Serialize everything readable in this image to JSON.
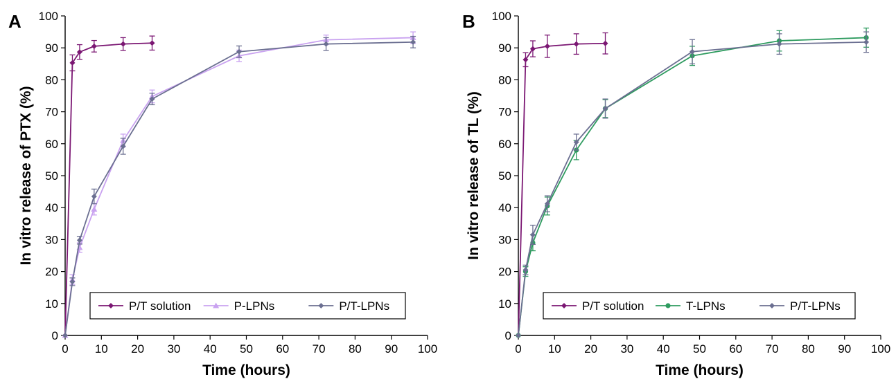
{
  "chart_data": [
    {
      "type": "line",
      "panel": "A",
      "xlabel": "Time (hours)",
      "ylabel": "In vitro release of PTX (%)",
      "xlim": [
        0,
        100
      ],
      "ylim": [
        0,
        100
      ],
      "xticks": [
        0,
        10,
        20,
        30,
        40,
        50,
        60,
        70,
        80,
        90,
        100
      ],
      "yticks": [
        0,
        10,
        20,
        30,
        40,
        50,
        60,
        70,
        80,
        90,
        100
      ],
      "grid": false,
      "legend": "bottom-center",
      "series": [
        {
          "name": "P/T solution",
          "color": "#7B1773",
          "marker": "diamond",
          "x": [
            0,
            2,
            4,
            8,
            16,
            24
          ],
          "y": [
            0,
            85.3,
            88.7,
            90.5,
            91.2,
            91.5
          ],
          "err": [
            0,
            2.5,
            2.3,
            1.8,
            2.0,
            2.2
          ]
        },
        {
          "name": "P-LPNs",
          "color": "#C9A2F0",
          "marker": "triangle",
          "x": [
            0,
            2,
            4,
            8,
            16,
            24,
            48,
            72,
            96
          ],
          "y": [
            0,
            17.5,
            27.5,
            39.5,
            61,
            74.8,
            87.5,
            92.5,
            93.2
          ],
          "err": [
            0,
            1.5,
            1.5,
            1.8,
            2.0,
            2.0,
            1.8,
            1.5,
            1.8
          ]
        },
        {
          "name": "P/T-LPNs",
          "color": "#6B6F91",
          "marker": "diamond",
          "x": [
            0,
            2,
            4,
            8,
            16,
            24,
            48,
            72,
            96
          ],
          "y": [
            0,
            16.8,
            29.8,
            43.5,
            59.2,
            74,
            88.8,
            91.2,
            91.8
          ],
          "err": [
            0,
            1.2,
            1.2,
            2.3,
            2.5,
            1.8,
            1.8,
            2.0,
            1.8
          ]
        }
      ]
    },
    {
      "type": "line",
      "panel": "B",
      "xlabel": "Time (hours)",
      "ylabel": "In vitro release of TL (%)",
      "xlim": [
        0,
        100
      ],
      "ylim": [
        0,
        100
      ],
      "xticks": [
        0,
        10,
        20,
        30,
        40,
        50,
        60,
        70,
        80,
        90,
        100
      ],
      "yticks": [
        0,
        10,
        20,
        30,
        40,
        50,
        60,
        70,
        80,
        90,
        100
      ],
      "grid": false,
      "legend": "bottom-center",
      "series": [
        {
          "name": "P/T solution",
          "color": "#7B1773",
          "marker": "diamond",
          "x": [
            0,
            2,
            4,
            8,
            16,
            24
          ],
          "y": [
            0,
            86.3,
            89.7,
            90.5,
            91.2,
            91.4
          ],
          "err": [
            0,
            2.2,
            2.5,
            3.5,
            3.2,
            3.3
          ]
        },
        {
          "name": "T-LPNs",
          "color": "#2E9B5F",
          "marker": "circle",
          "x": [
            0,
            2,
            4,
            8,
            16,
            24,
            48,
            72,
            96
          ],
          "y": [
            0,
            20,
            29,
            40.5,
            58,
            71,
            87.5,
            92.2,
            93.2
          ],
          "err": [
            0,
            1.5,
            2.5,
            2.8,
            3.0,
            2.8,
            3.0,
            3.2,
            3.0
          ]
        },
        {
          "name": "P/T-LPNs",
          "color": "#6B6F91",
          "marker": "diamond",
          "x": [
            0,
            2,
            4,
            8,
            16,
            24,
            48,
            72,
            96
          ],
          "y": [
            0,
            20.5,
            31.5,
            41.2,
            60.5,
            71,
            88.8,
            91.2,
            91.8
          ],
          "err": [
            0,
            1.5,
            3.0,
            2.5,
            2.5,
            3.0,
            3.8,
            3.2,
            3.2
          ]
        }
      ]
    }
  ]
}
